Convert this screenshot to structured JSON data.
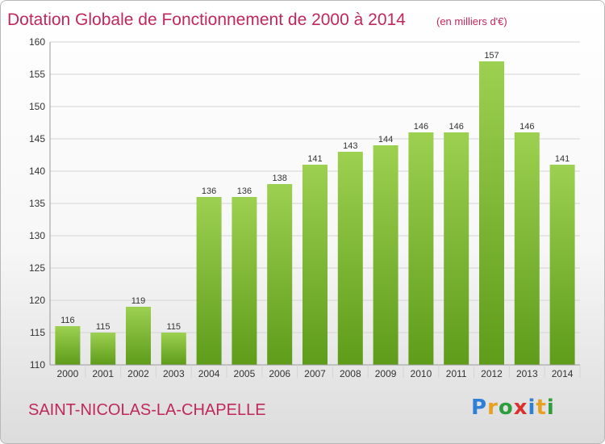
{
  "header": {
    "title": "Dotation Globale de Fonctionnement de 2000 à 2014",
    "unit": "(en milliers d'€)"
  },
  "footer": {
    "place": "SAINT-NICOLAS-LA-CHAPELLE",
    "logo_letters": [
      "P",
      "r",
      "o",
      "x",
      "i",
      "t",
      "i"
    ]
  },
  "colors": {
    "bar_top": "#9dd050",
    "bar_bottom": "#5e9c1a",
    "title": "#c0285a",
    "grid": "#d4d4d4"
  },
  "chart_data": {
    "type": "bar",
    "title": "Dotation Globale de Fonctionnement de 2000 à 2014",
    "subtitle": "(en milliers d'€)",
    "xlabel": "",
    "ylabel": "",
    "categories": [
      "2000",
      "2001",
      "2002",
      "2003",
      "2004",
      "2005",
      "2006",
      "2007",
      "2008",
      "2009",
      "2010",
      "2011",
      "2012",
      "2013",
      "2014"
    ],
    "values": [
      116,
      115,
      119,
      115,
      136,
      136,
      138,
      141,
      143,
      144,
      146,
      146,
      157,
      146,
      141
    ],
    "ylim": [
      110,
      160
    ],
    "yticks": [
      110,
      115,
      120,
      125,
      130,
      135,
      140,
      145,
      150,
      155,
      160
    ],
    "grid": true,
    "data_labels": true
  }
}
